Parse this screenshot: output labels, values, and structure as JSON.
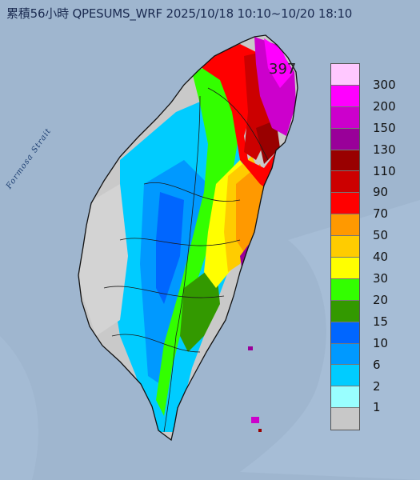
{
  "title": "累積56小時 QPESUMS_WRF 2025/10/18 10:10~10/20 18:10",
  "max_value_label": "397",
  "strait_label": "Formosa Strait",
  "colors": {
    "sea": "#9fb6cf",
    "land_dry": "#c9c9c9",
    "coast": "#111111"
  },
  "legend": {
    "labels": [
      "300",
      "200",
      "150",
      "130",
      "110",
      "90",
      "70",
      "50",
      "40",
      "30",
      "20",
      "15",
      "10",
      "6",
      "2",
      "1"
    ],
    "swatches": [
      {
        "color": "#ffc8ff"
      },
      {
        "color": "#ff00ff"
      },
      {
        "color": "#cc00cc"
      },
      {
        "color": "#990099"
      },
      {
        "color": "#990000"
      },
      {
        "color": "#cc0000"
      },
      {
        "color": "#ff0000"
      },
      {
        "color": "#ff9900"
      },
      {
        "color": "#ffcc00"
      },
      {
        "color": "#ffff00"
      },
      {
        "color": "#33ff00"
      },
      {
        "color": "#339900"
      },
      {
        "color": "#0066ff"
      },
      {
        "color": "#0099ff"
      },
      {
        "color": "#00ccff"
      },
      {
        "color": "#99ffff"
      },
      {
        "color": "#c8c8c8"
      }
    ]
  }
}
